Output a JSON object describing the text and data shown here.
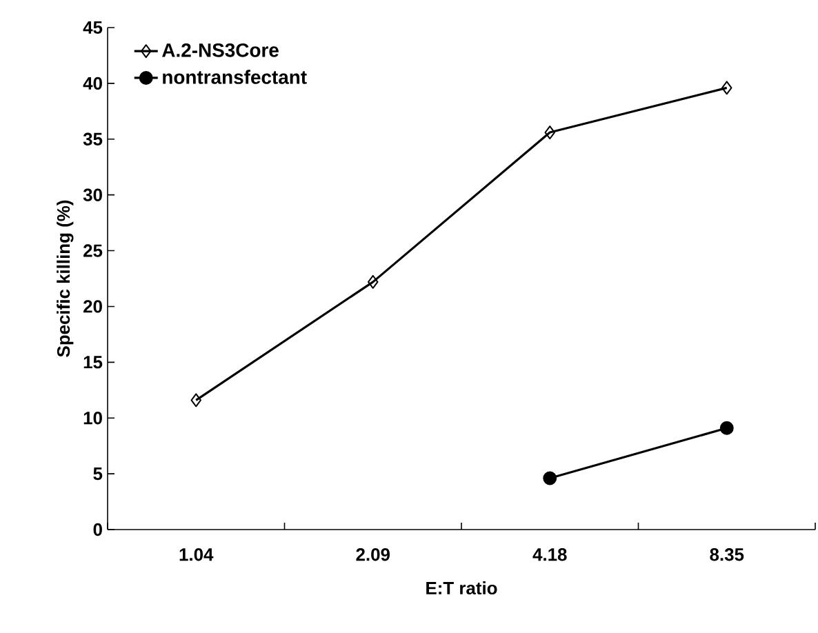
{
  "chart_data": {
    "type": "line",
    "xlabel": "E:T ratio",
    "ylabel": "Specific killing (%)",
    "categories": [
      "1.04",
      "2.09",
      "4.18",
      "8.35"
    ],
    "series": [
      {
        "name": "A.2-NS3Core",
        "color": "#000000",
        "marker": "diamond",
        "values": [
          11.6,
          22.2,
          35.6,
          39.6
        ]
      },
      {
        "name": "nontransfectant",
        "color": "#000000",
        "marker": "circle",
        "values": [
          null,
          null,
          4.6,
          9.1
        ]
      }
    ],
    "ylim": [
      0,
      45
    ],
    "yticks": [
      0,
      5,
      10,
      15,
      20,
      25,
      30,
      35,
      40,
      45
    ],
    "grid": false,
    "legend": "top left",
    "line_style": "solid"
  }
}
